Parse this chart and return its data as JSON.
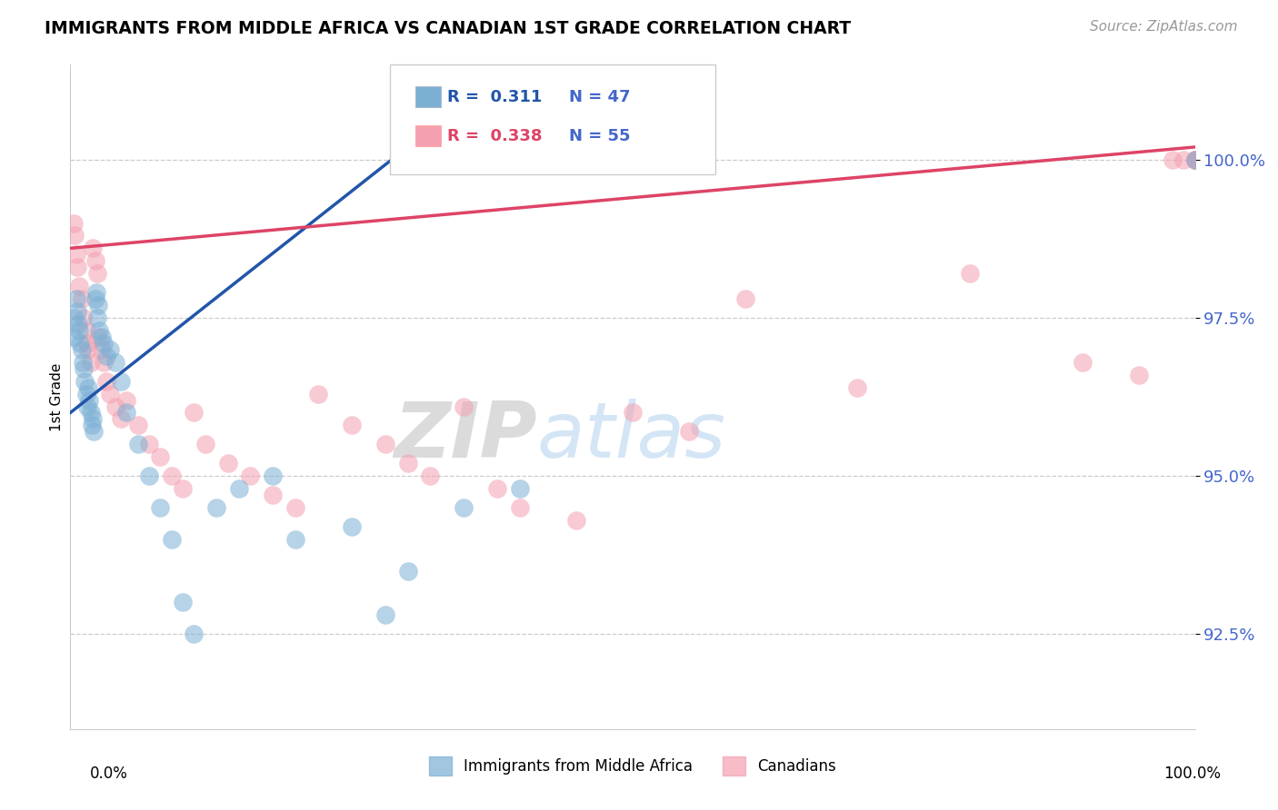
{
  "title": "IMMIGRANTS FROM MIDDLE AFRICA VS CANADIAN 1ST GRADE CORRELATION CHART",
  "source": "Source: ZipAtlas.com",
  "ylabel": "1st Grade",
  "legend_label_blue": "Immigrants from Middle Africa",
  "legend_label_pink": "Canadians",
  "r_blue": 0.311,
  "n_blue": 47,
  "r_pink": 0.338,
  "n_pink": 55,
  "color_blue": "#7BAFD4",
  "color_pink": "#F4A0B0",
  "line_blue": "#2255AA",
  "line_pink": "#DD4466",
  "ytick_color": "#4466CC",
  "watermark_zip": "ZIP",
  "watermark_atlas": "atlas",
  "yticks": [
    92.5,
    95.0,
    97.5,
    100.0
  ],
  "xlim": [
    0,
    100
  ],
  "ylim": [
    91.0,
    101.5
  ],
  "blue_x": [
    0.3,
    0.4,
    0.5,
    0.6,
    0.7,
    0.8,
    0.9,
    1.0,
    1.1,
    1.2,
    1.3,
    1.4,
    1.5,
    1.6,
    1.7,
    1.8,
    1.9,
    2.0,
    2.1,
    2.2,
    2.3,
    2.4,
    2.5,
    2.6,
    2.8,
    3.0,
    3.2,
    3.5,
    4.0,
    4.5,
    5.0,
    6.0,
    7.0,
    8.0,
    9.0,
    10.0,
    11.0,
    13.0,
    15.0,
    18.0,
    20.0,
    25.0,
    28.0,
    30.0,
    35.0,
    40.0,
    100.0
  ],
  "blue_y": [
    97.2,
    97.5,
    97.8,
    97.6,
    97.4,
    97.3,
    97.1,
    97.0,
    96.8,
    96.7,
    96.5,
    96.3,
    96.1,
    96.4,
    96.2,
    96.0,
    95.8,
    95.9,
    95.7,
    97.8,
    97.9,
    97.5,
    97.7,
    97.3,
    97.2,
    97.1,
    96.9,
    97.0,
    96.8,
    96.5,
    96.0,
    95.5,
    95.0,
    94.5,
    94.0,
    93.0,
    92.5,
    94.5,
    94.8,
    95.0,
    94.0,
    94.2,
    92.8,
    93.5,
    94.5,
    94.8,
    100.0
  ],
  "pink_x": [
    0.3,
    0.4,
    0.5,
    0.6,
    0.8,
    1.0,
    1.2,
    1.4,
    1.5,
    1.6,
    1.8,
    2.0,
    2.2,
    2.4,
    2.5,
    2.8,
    3.0,
    3.2,
    3.5,
    4.0,
    4.5,
    5.0,
    6.0,
    7.0,
    8.0,
    9.0,
    10.0,
    11.0,
    12.0,
    14.0,
    16.0,
    18.0,
    20.0,
    22.0,
    25.0,
    28.0,
    30.0,
    32.0,
    35.0,
    38.0,
    40.0,
    45.0,
    50.0,
    55.0,
    60.0,
    70.0,
    80.0,
    90.0,
    95.0,
    98.0,
    99.0,
    100.0,
    100.0,
    100.0,
    100.0
  ],
  "pink_y": [
    99.0,
    98.8,
    98.5,
    98.3,
    98.0,
    97.8,
    97.5,
    97.3,
    97.1,
    97.0,
    96.8,
    98.6,
    98.4,
    98.2,
    97.2,
    97.0,
    96.8,
    96.5,
    96.3,
    96.1,
    95.9,
    96.2,
    95.8,
    95.5,
    95.3,
    95.0,
    94.8,
    96.0,
    95.5,
    95.2,
    95.0,
    94.7,
    94.5,
    96.3,
    95.8,
    95.5,
    95.2,
    95.0,
    96.1,
    94.8,
    94.5,
    94.3,
    96.0,
    95.7,
    97.8,
    96.4,
    98.2,
    96.8,
    96.6,
    100.0,
    100.0,
    100.0,
    100.0,
    100.0,
    100.0
  ]
}
